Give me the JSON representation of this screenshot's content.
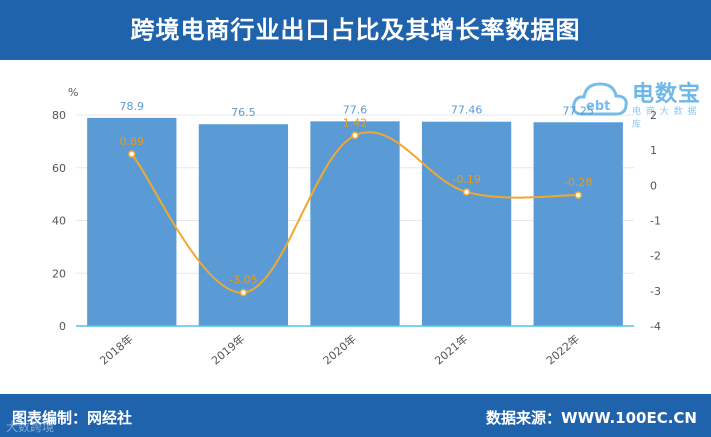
{
  "header": {
    "title": "跨境电商行业出口占比及其增长率数据图"
  },
  "footer": {
    "left": "图表编制：网经社",
    "right": "数据来源：WWW.100EC.CN",
    "watermark": "大数跨境"
  },
  "logo": {
    "name": "电数宝",
    "sub": "电 商 大 数 据 库",
    "icon": "cloud-ebt-icon"
  },
  "chart_data": {
    "type": "bar",
    "categories": [
      "2018年",
      "2019年",
      "2020年",
      "2021年",
      "2022年"
    ],
    "series": [
      {
        "values": [
          78.9,
          76.5,
          77.6,
          77.46,
          77.25
        ],
        "color": "#5b9bd5",
        "axis": "left",
        "type": "bar"
      },
      {
        "values": [
          0.89,
          -3.05,
          1.42,
          -0.19,
          -0.28
        ],
        "color": "#f0a830",
        "axis": "right",
        "type": "line"
      }
    ],
    "ylabel": "%",
    "ylim": [
      0,
      80
    ],
    "yticks": [
      0,
      20,
      40,
      60,
      80
    ],
    "y2lim": [
      -4,
      2
    ],
    "y2ticks": [
      -4,
      -3,
      -2,
      -1,
      0,
      1,
      2
    ],
    "grid": true
  }
}
